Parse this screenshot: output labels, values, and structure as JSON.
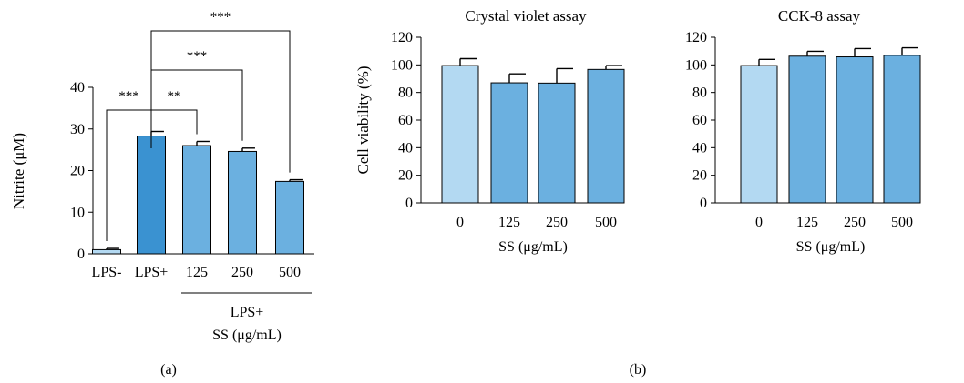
{
  "colors": {
    "lps_neg": "#b3d9f2",
    "lps_pos": "#3a92d1",
    "treated": "#6bb0e0",
    "ss_zero": "#b3d9f2",
    "ss_dose": "#6bb0e0",
    "stroke": "#000000"
  },
  "panel_a": {
    "label": "(a)",
    "group_label_line1": "LPS+",
    "group_label_line2": "SS (μg/mL)"
  },
  "panel_b": {
    "label": "(b)"
  },
  "chart_data": [
    {
      "type": "bar",
      "panel": "a",
      "title": "",
      "xlabel": "",
      "ylabel": "Nitrite (μM)",
      "ylim": [
        0,
        40
      ],
      "yticks": [
        0,
        10,
        20,
        30,
        40
      ],
      "categories": [
        "LPS-",
        "LPS+",
        "125",
        "250",
        "500"
      ],
      "values": [
        1.0,
        28.3,
        26.0,
        24.6,
        17.4
      ],
      "errors": [
        0.3,
        1.1,
        1.0,
        0.8,
        0.4
      ],
      "bar_colors": [
        "lps_neg",
        "lps_pos",
        "treated",
        "treated",
        "treated"
      ],
      "significance": [
        {
          "from": 0,
          "to": 1,
          "label": "***"
        },
        {
          "from": 1,
          "to": 2,
          "label": "**"
        },
        {
          "from": 1,
          "to": 3,
          "label": "***"
        },
        {
          "from": 1,
          "to": 4,
          "label": "***"
        }
      ]
    },
    {
      "type": "bar",
      "panel": "b",
      "title": "Crystal violet assay",
      "xlabel": "SS (μg/mL)",
      "ylabel": "Cell viability (%)",
      "ylim": [
        0,
        120
      ],
      "yticks": [
        0,
        20,
        40,
        60,
        80,
        100,
        120
      ],
      "categories": [
        "0",
        "125",
        "250",
        "500"
      ],
      "values": [
        99.5,
        87.0,
        86.8,
        96.7
      ],
      "errors": [
        5.0,
        6.5,
        10.5,
        2.8
      ],
      "bar_colors": [
        "ss_zero",
        "ss_dose",
        "ss_dose",
        "ss_dose"
      ]
    },
    {
      "type": "bar",
      "panel": "b",
      "title": "CCK-8 assay",
      "xlabel": "SS (μg/mL)",
      "ylabel": "",
      "ylim": [
        0,
        120
      ],
      "yticks": [
        0,
        20,
        40,
        60,
        80,
        100,
        120
      ],
      "categories": [
        "0",
        "125",
        "250",
        "500"
      ],
      "values": [
        99.5,
        106.3,
        105.8,
        106.9
      ],
      "errors": [
        4.5,
        3.5,
        6.0,
        5.5
      ],
      "bar_colors": [
        "ss_zero",
        "ss_dose",
        "ss_dose",
        "ss_dose"
      ]
    }
  ]
}
